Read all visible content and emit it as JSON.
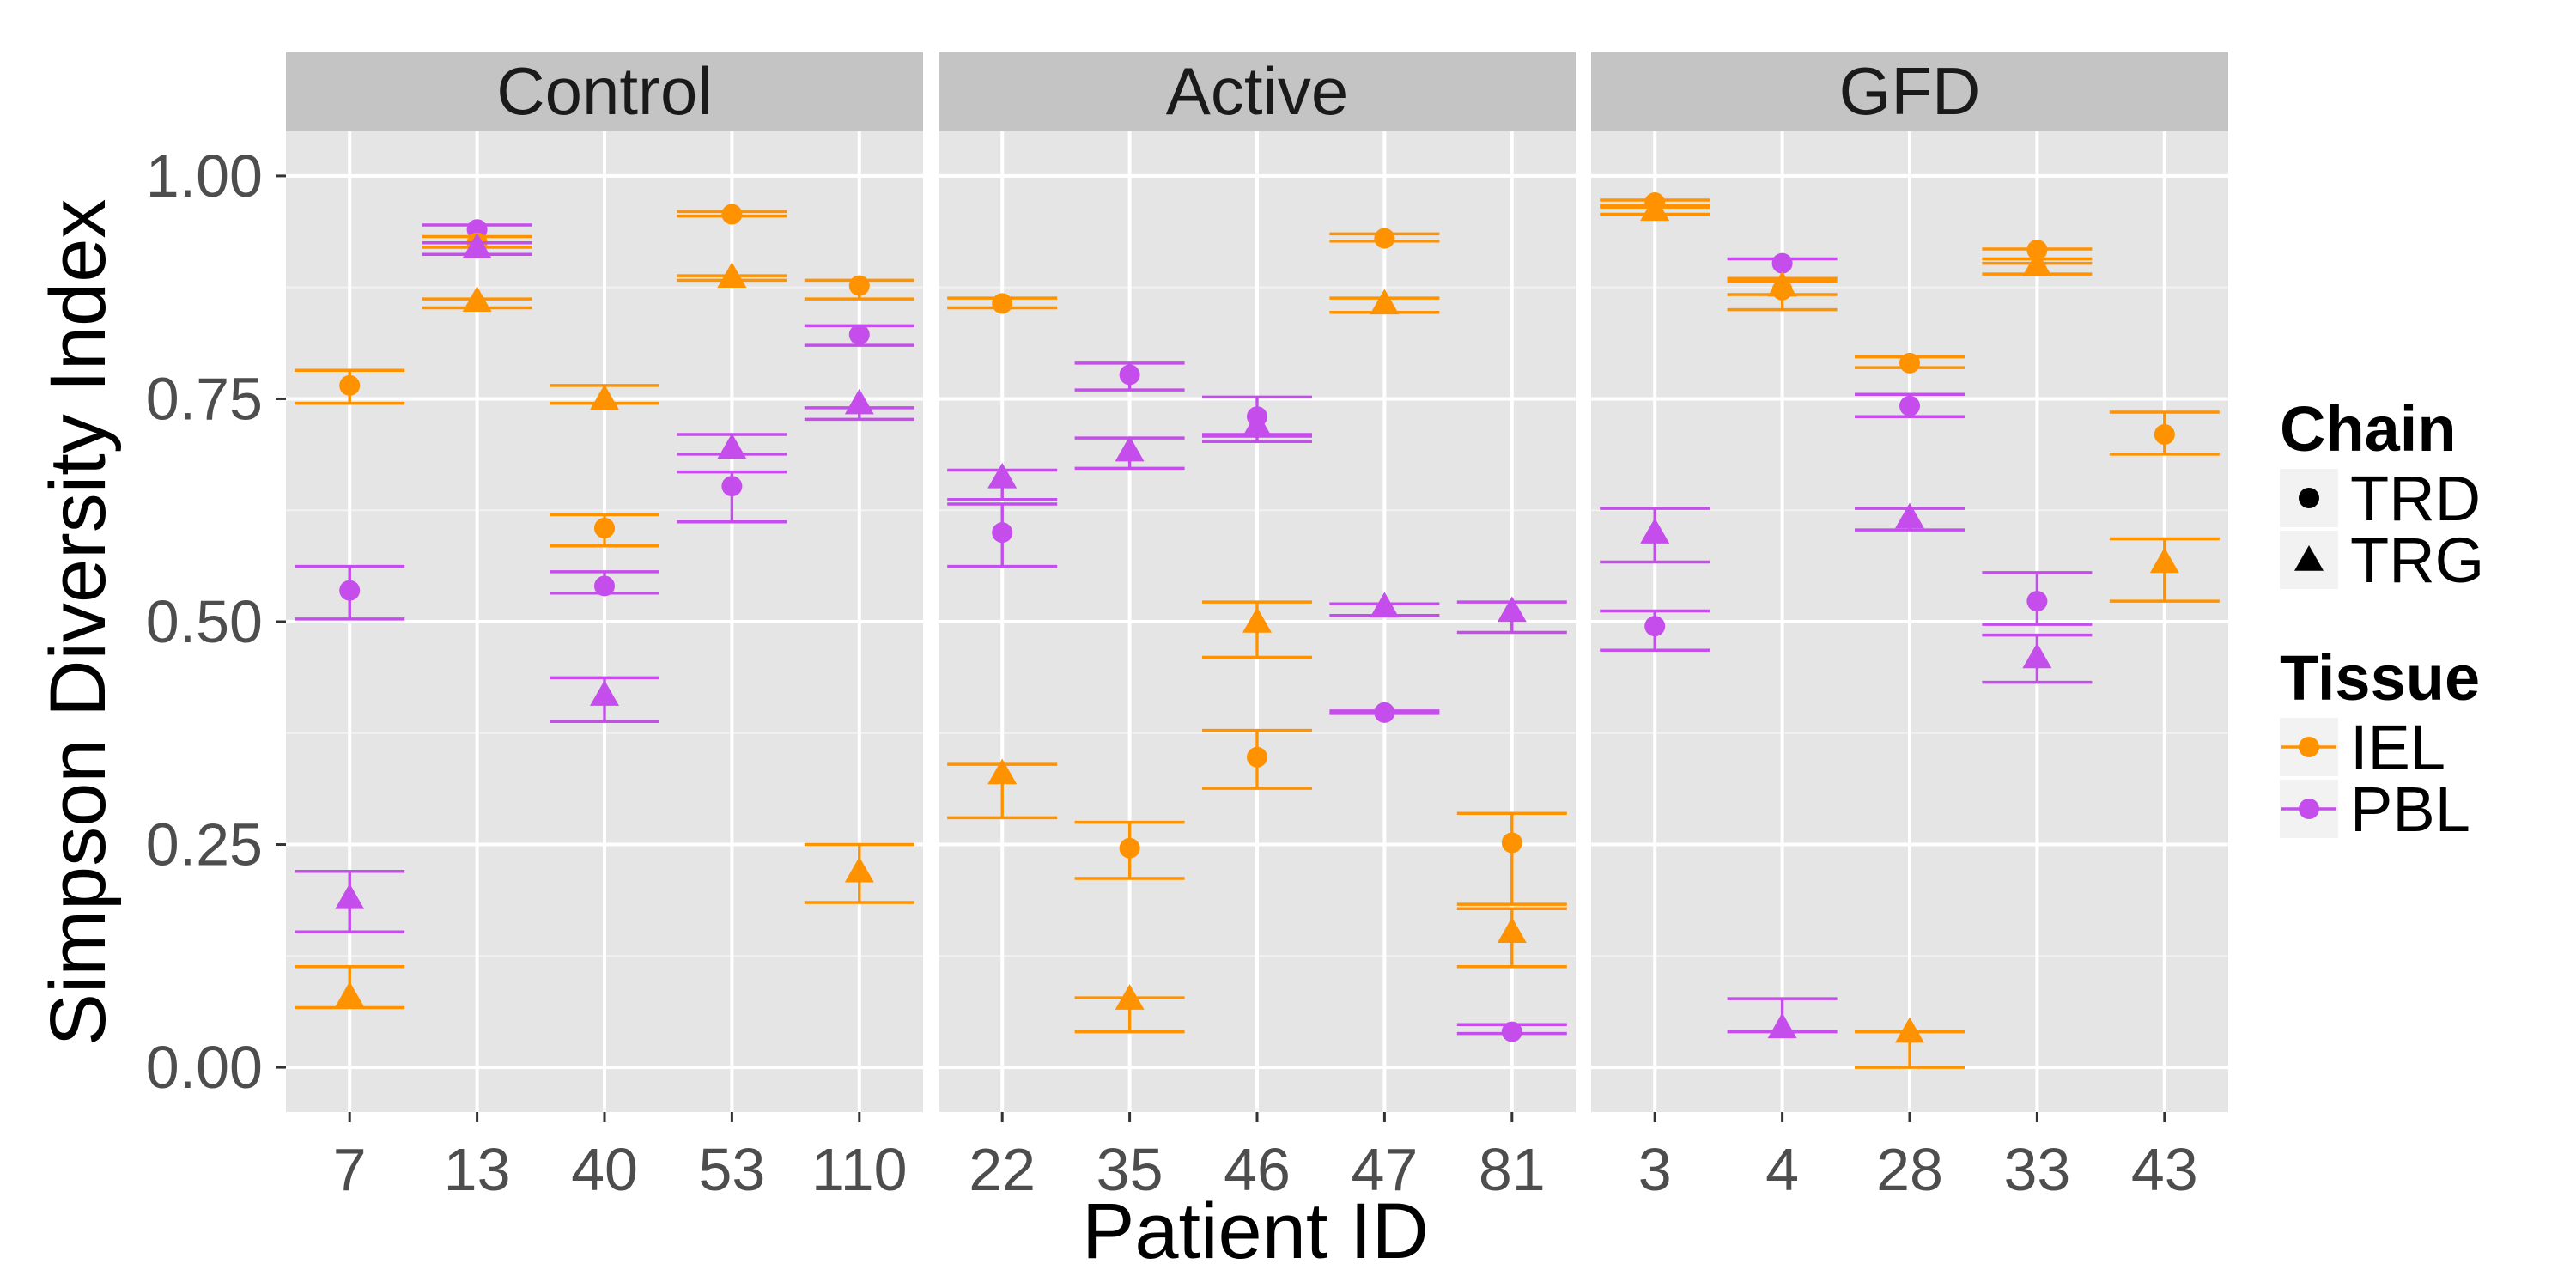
{
  "chart_data": {
    "type": "scatter",
    "xlabel": "Patient ID",
    "ylabel": "Simpson Diversity Index",
    "ylim": [
      -0.05,
      1.05
    ],
    "yticks": [
      "0.00",
      "0.25",
      "0.50",
      "0.75",
      "1.00"
    ],
    "ytick_values": [
      0,
      0.25,
      0.5,
      0.75,
      1.0
    ],
    "grid": true,
    "legend_position": "right",
    "colors": {
      "IEL": "#FF9200",
      "PBL": "#C44DEB"
    },
    "legend": {
      "shape": {
        "title": "Chain",
        "items": [
          "TRD",
          "TRG"
        ]
      },
      "color": {
        "title": "Tissue",
        "items": [
          "IEL",
          "PBL"
        ]
      }
    },
    "panels": [
      {
        "name": "Control",
        "categories": [
          "7",
          "13",
          "40",
          "53",
          "110"
        ],
        "points": [
          {
            "x": "7",
            "tissue": "IEL",
            "chain": "TRD",
            "y": 0.765,
            "lo": 0.745,
            "hi": 0.782
          },
          {
            "x": "7",
            "tissue": "PBL",
            "chain": "TRD",
            "y": 0.535,
            "lo": 0.503,
            "hi": 0.562
          },
          {
            "x": "7",
            "tissue": "PBL",
            "chain": "TRG",
            "y": 0.19,
            "lo": 0.152,
            "hi": 0.22
          },
          {
            "x": "7",
            "tissue": "IEL",
            "chain": "TRG",
            "y": 0.08,
            "lo": 0.067,
            "hi": 0.113
          },
          {
            "x": "13",
            "tissue": "PBL",
            "chain": "TRD",
            "y": 0.94,
            "lo": 0.925,
            "hi": 0.945
          },
          {
            "x": "13",
            "tissue": "IEL",
            "chain": "TRD",
            "y": 0.925,
            "lo": 0.92,
            "hi": 0.932
          },
          {
            "x": "13",
            "tissue": "PBL",
            "chain": "TRG",
            "y": 0.92,
            "lo": 0.912,
            "hi": 0.925
          },
          {
            "x": "13",
            "tissue": "IEL",
            "chain": "TRG",
            "y": 0.86,
            "lo": 0.852,
            "hi": 0.862
          },
          {
            "x": "40",
            "tissue": "IEL",
            "chain": "TRG",
            "y": 0.75,
            "lo": 0.745,
            "hi": 0.765
          },
          {
            "x": "40",
            "tissue": "IEL",
            "chain": "TRD",
            "y": 0.605,
            "lo": 0.585,
            "hi": 0.62
          },
          {
            "x": "40",
            "tissue": "PBL",
            "chain": "TRD",
            "y": 0.54,
            "lo": 0.532,
            "hi": 0.556
          },
          {
            "x": "40",
            "tissue": "PBL",
            "chain": "TRG",
            "y": 0.418,
            "lo": 0.388,
            "hi": 0.437
          },
          {
            "x": "53",
            "tissue": "IEL",
            "chain": "TRD",
            "y": 0.957,
            "lo": 0.955,
            "hi": 0.96
          },
          {
            "x": "53",
            "tissue": "IEL",
            "chain": "TRG",
            "y": 0.887,
            "lo": 0.883,
            "hi": 0.888
          },
          {
            "x": "53",
            "tissue": "PBL",
            "chain": "TRG",
            "y": 0.695,
            "lo": 0.688,
            "hi": 0.71
          },
          {
            "x": "53",
            "tissue": "PBL",
            "chain": "TRD",
            "y": 0.652,
            "lo": 0.612,
            "hi": 0.668
          },
          {
            "x": "110",
            "tissue": "IEL",
            "chain": "TRD",
            "y": 0.877,
            "lo": 0.862,
            "hi": 0.883
          },
          {
            "x": "110",
            "tissue": "PBL",
            "chain": "TRD",
            "y": 0.822,
            "lo": 0.81,
            "hi": 0.832
          },
          {
            "x": "110",
            "tissue": "PBL",
            "chain": "TRG",
            "y": 0.745,
            "lo": 0.727,
            "hi": 0.74
          },
          {
            "x": "110",
            "tissue": "IEL",
            "chain": "TRG",
            "y": 0.22,
            "lo": 0.185,
            "hi": 0.25
          }
        ]
      },
      {
        "name": "Active",
        "categories": [
          "22",
          "35",
          "46",
          "47",
          "81"
        ],
        "points": [
          {
            "x": "22",
            "tissue": "IEL",
            "chain": "TRD",
            "y": 0.857,
            "lo": 0.852,
            "hi": 0.863
          },
          {
            "x": "22",
            "tissue": "PBL",
            "chain": "TRG",
            "y": 0.662,
            "lo": 0.637,
            "hi": 0.67
          },
          {
            "x": "22",
            "tissue": "PBL",
            "chain": "TRD",
            "y": 0.6,
            "lo": 0.562,
            "hi": 0.632
          },
          {
            "x": "22",
            "tissue": "IEL",
            "chain": "TRG",
            "y": 0.33,
            "lo": 0.28,
            "hi": 0.34
          },
          {
            "x": "35",
            "tissue": "PBL",
            "chain": "TRD",
            "y": 0.777,
            "lo": 0.76,
            "hi": 0.79
          },
          {
            "x": "35",
            "tissue": "PBL",
            "chain": "TRG",
            "y": 0.692,
            "lo": 0.672,
            "hi": 0.706
          },
          {
            "x": "35",
            "tissue": "IEL",
            "chain": "TRD",
            "y": 0.246,
            "lo": 0.212,
            "hi": 0.275
          },
          {
            "x": "35",
            "tissue": "IEL",
            "chain": "TRG",
            "y": 0.077,
            "lo": 0.04,
            "hi": 0.078
          },
          {
            "x": "46",
            "tissue": "PBL",
            "chain": "TRD",
            "y": 0.73,
            "lo": 0.71,
            "hi": 0.752
          },
          {
            "x": "46",
            "tissue": "PBL",
            "chain": "TRG",
            "y": 0.72,
            "lo": 0.702,
            "hi": 0.708
          },
          {
            "x": "46",
            "tissue": "IEL",
            "chain": "TRG",
            "y": 0.5,
            "lo": 0.46,
            "hi": 0.522
          },
          {
            "x": "46",
            "tissue": "IEL",
            "chain": "TRD",
            "y": 0.348,
            "lo": 0.313,
            "hi": 0.378
          },
          {
            "x": "47",
            "tissue": "IEL",
            "chain": "TRD",
            "y": 0.93,
            "lo": 0.927,
            "hi": 0.935
          },
          {
            "x": "47",
            "tissue": "IEL",
            "chain": "TRG",
            "y": 0.857,
            "lo": 0.847,
            "hi": 0.863
          },
          {
            "x": "47",
            "tissue": "PBL",
            "chain": "TRG",
            "y": 0.517,
            "lo": 0.507,
            "hi": 0.52
          },
          {
            "x": "47",
            "tissue": "PBL",
            "chain": "TRD",
            "y": 0.398,
            "lo": 0.397,
            "hi": 0.4
          },
          {
            "x": "81",
            "tissue": "PBL",
            "chain": "TRG",
            "y": 0.512,
            "lo": 0.488,
            "hi": 0.522
          },
          {
            "x": "81",
            "tissue": "IEL",
            "chain": "TRD",
            "y": 0.252,
            "lo": 0.183,
            "hi": 0.285
          },
          {
            "x": "81",
            "tissue": "IEL",
            "chain": "TRG",
            "y": 0.152,
            "lo": 0.113,
            "hi": 0.178
          },
          {
            "x": "81",
            "tissue": "PBL",
            "chain": "TRD",
            "y": 0.04,
            "lo": 0.038,
            "hi": 0.048
          }
        ]
      },
      {
        "name": "GFD",
        "categories": [
          "3",
          "4",
          "28",
          "33",
          "43"
        ],
        "points": [
          {
            "x": "3",
            "tissue": "IEL",
            "chain": "TRD",
            "y": 0.97,
            "lo": 0.967,
            "hi": 0.973
          },
          {
            "x": "3",
            "tissue": "IEL",
            "chain": "TRG",
            "y": 0.962,
            "lo": 0.957,
            "hi": 0.965
          },
          {
            "x": "3",
            "tissue": "PBL",
            "chain": "TRG",
            "y": 0.6,
            "lo": 0.567,
            "hi": 0.627
          },
          {
            "x": "3",
            "tissue": "PBL",
            "chain": "TRD",
            "y": 0.495,
            "lo": 0.468,
            "hi": 0.512
          },
          {
            "x": "4",
            "tissue": "PBL",
            "chain": "TRD",
            "y": 0.902,
            "lo": 0.885,
            "hi": 0.907
          },
          {
            "x": "4",
            "tissue": "IEL",
            "chain": "TRG",
            "y": 0.877,
            "lo": 0.85,
            "hi": 0.885
          },
          {
            "x": "4",
            "tissue": "IEL",
            "chain": "TRD",
            "y": 0.872,
            "lo": 0.867,
            "hi": 0.882
          },
          {
            "x": "4",
            "tissue": "PBL",
            "chain": "TRG",
            "y": 0.045,
            "lo": 0.04,
            "hi": 0.077
          },
          {
            "x": "28",
            "tissue": "IEL",
            "chain": "TRD",
            "y": 0.79,
            "lo": 0.785,
            "hi": 0.797
          },
          {
            "x": "28",
            "tissue": "PBL",
            "chain": "TRD",
            "y": 0.742,
            "lo": 0.73,
            "hi": 0.755
          },
          {
            "x": "28",
            "tissue": "PBL",
            "chain": "TRG",
            "y": 0.617,
            "lo": 0.603,
            "hi": 0.627
          },
          {
            "x": "28",
            "tissue": "IEL",
            "chain": "TRG",
            "y": 0.04,
            "lo": 0.0,
            "hi": 0.04
          },
          {
            "x": "33",
            "tissue": "IEL",
            "chain": "TRD",
            "y": 0.917,
            "lo": 0.902,
            "hi": 0.918
          },
          {
            "x": "33",
            "tissue": "IEL",
            "chain": "TRG",
            "y": 0.9,
            "lo": 0.89,
            "hi": 0.907
          },
          {
            "x": "33",
            "tissue": "PBL",
            "chain": "TRD",
            "y": 0.523,
            "lo": 0.497,
            "hi": 0.555
          },
          {
            "x": "33",
            "tissue": "PBL",
            "chain": "TRG",
            "y": 0.46,
            "lo": 0.432,
            "hi": 0.485
          },
          {
            "x": "43",
            "tissue": "IEL",
            "chain": "TRD",
            "y": 0.71,
            "lo": 0.688,
            "hi": 0.735
          },
          {
            "x": "43",
            "tissue": "IEL",
            "chain": "TRG",
            "y": 0.567,
            "lo": 0.523,
            "hi": 0.593
          }
        ]
      }
    ]
  }
}
